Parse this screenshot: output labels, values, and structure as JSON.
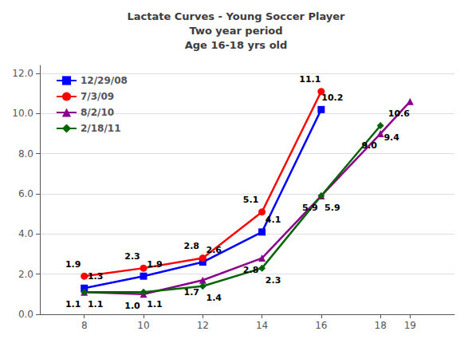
{
  "chart_data": {
    "type": "line",
    "title": [
      "Lactate Curves - Young Soccer Player",
      "Two year period",
      "Age 16-18 yrs old"
    ],
    "series": [
      {
        "name": "12/29/08",
        "color": "#0000ff",
        "marker": "square",
        "x": [
          8,
          10,
          12,
          14,
          16
        ],
        "values": [
          1.3,
          1.9,
          2.6,
          4.1,
          10.2
        ],
        "value_labels": [
          "1.3",
          "1.9",
          "2.6",
          "4.1",
          "10.2"
        ]
      },
      {
        "name": "7/3/09",
        "color": "#ff0000",
        "marker": "circle",
        "x": [
          8,
          10,
          12,
          14,
          16
        ],
        "values": [
          1.9,
          2.3,
          2.8,
          5.1,
          11.1
        ],
        "value_labels": [
          "1.9",
          "2.3",
          "2.8",
          "5.1",
          "11.1"
        ]
      },
      {
        "name": "8/2/10",
        "color": "#8b008b",
        "marker": "triangle",
        "x": [
          8,
          10,
          12,
          14,
          16,
          18,
          19
        ],
        "values": [
          1.1,
          1.0,
          1.7,
          2.8,
          5.9,
          9.0,
          10.6
        ],
        "value_labels": [
          "1.1",
          "1.0",
          "1.7",
          "2.8",
          "5.9",
          "9.0",
          "10.6"
        ]
      },
      {
        "name": "2/18/11",
        "color": "#006400",
        "marker": "diamond",
        "x": [
          8,
          10,
          12,
          14,
          16,
          18
        ],
        "values": [
          1.1,
          1.1,
          1.4,
          2.3,
          5.9,
          9.4
        ],
        "value_labels": [
          "1.1",
          "1.1",
          "1.4",
          "2.3",
          "5.9",
          "9.4"
        ]
      }
    ],
    "xlim": [
      6.5,
      20.5
    ],
    "xticks": [
      8,
      10,
      12,
      14,
      16,
      18,
      19
    ],
    "ylim": [
      0,
      12.4
    ],
    "yticks": [
      {
        "value": 0,
        "label": "0.0"
      },
      {
        "value": 2,
        "label": "2.0"
      },
      {
        "value": 4,
        "label": "4.0"
      },
      {
        "value": 6,
        "label": "6.0"
      },
      {
        "value": 8,
        "label": "8.0"
      },
      {
        "value": 10,
        "label": "10.0"
      },
      {
        "value": 12,
        "label": "12.0"
      }
    ],
    "grid": true,
    "legend": "upper left",
    "data_labels": true
  }
}
